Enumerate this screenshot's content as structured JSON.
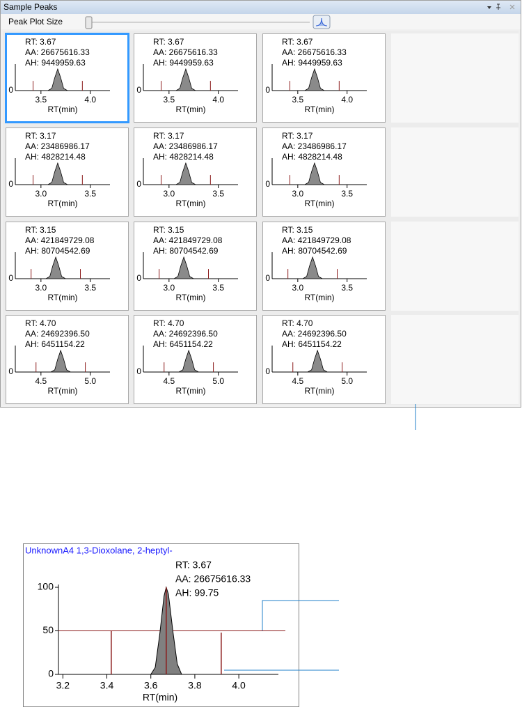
{
  "panel": {
    "title": "Sample Peaks",
    "toolbar_label": "Peak Plot Size",
    "rows": [
      {
        "xlim": [
          3.24,
          4.2
        ],
        "xticks": [
          3.5,
          {
            "value": 4.0,
            "label": "4.0"
          }
        ],
        "ylim": [
          0,
          110
        ],
        "yticks": [
          0
        ],
        "x_label": "RT(min)",
        "peak_x": [
          3.57,
          3.61,
          3.64,
          3.67,
          3.7,
          3.73,
          3.77
        ],
        "peak_values": [
          0,
          10,
          60,
          100,
          60,
          10,
          0
        ],
        "marker_x": [
          3.42,
          3.67,
          3.92
        ],
        "marker_values": [
          45,
          100,
          45
        ],
        "cells": [
          {
            "rt": "RT: 3.67",
            "aa": "AA: 26675616.33",
            "ah": "AH: 9449959.63"
          },
          {
            "rt": "RT: 3.67",
            "aa": "AA: 26675616.33",
            "ah": "AH: 9449959.63"
          },
          {
            "rt": "RT: 3.67",
            "aa": "AA: 26675616.33",
            "ah": "AH: 9449959.63"
          }
        ]
      },
      {
        "xlim": [
          2.74,
          3.7
        ],
        "xticks": [
          {
            "value": 3.0,
            "label": "3.0"
          },
          3.5
        ],
        "ylim": [
          0,
          110
        ],
        "yticks": [
          0
        ],
        "x_label": "RT(min)",
        "peak_x": [
          3.07,
          3.11,
          3.14,
          3.17,
          3.2,
          3.23,
          3.27
        ],
        "peak_values": [
          0,
          10,
          60,
          100,
          60,
          10,
          0
        ],
        "marker_x": [
          2.92,
          3.17,
          3.42
        ],
        "marker_values": [
          45,
          100,
          45
        ],
        "cells": [
          {
            "rt": "RT: 3.17",
            "aa": "AA: 23486986.17",
            "ah": "AH: 4828214.48"
          },
          {
            "rt": "RT: 3.17",
            "aa": "AA: 23486986.17",
            "ah": "AH: 4828214.48"
          },
          {
            "rt": "RT: 3.17",
            "aa": "AA: 23486986.17",
            "ah": "AH: 4828214.48"
          }
        ]
      },
      {
        "xlim": [
          2.74,
          3.7
        ],
        "xticks": [
          {
            "value": 3.0,
            "label": "3.0"
          },
          3.5
        ],
        "ylim": [
          0,
          110
        ],
        "yticks": [
          0
        ],
        "x_label": "RT(min)",
        "peak_x": [
          3.05,
          3.09,
          3.12,
          3.15,
          3.18,
          3.21,
          3.25
        ],
        "peak_values": [
          0,
          10,
          60,
          100,
          60,
          10,
          0
        ],
        "marker_x": [
          2.9,
          3.15,
          3.4
        ],
        "marker_values": [
          45,
          100,
          45
        ],
        "cells": [
          {
            "rt": "RT: 3.15",
            "aa": "AA: 421849729.08",
            "ah": "AH: 80704542.69"
          },
          {
            "rt": "RT: 3.15",
            "aa": "AA: 421849729.08",
            "ah": "AH: 80704542.69"
          },
          {
            "rt": "RT: 3.15",
            "aa": "AA: 421849729.08",
            "ah": "AH: 80704542.69"
          }
        ]
      },
      {
        "xlim": [
          4.24,
          5.2
        ],
        "xticks": [
          4.5,
          {
            "value": 5.0,
            "label": "5.0"
          }
        ],
        "ylim": [
          0,
          110
        ],
        "yticks": [
          0
        ],
        "x_label": "RT(min)",
        "peak_x": [
          4.6,
          4.64,
          4.67,
          4.7,
          4.73,
          4.76,
          4.8
        ],
        "peak_values": [
          0,
          10,
          60,
          100,
          60,
          10,
          0
        ],
        "marker_x": [
          4.45,
          4.7,
          4.95
        ],
        "marker_values": [
          45,
          100,
          45
        ],
        "cells": [
          {
            "rt": "RT: 4.70",
            "aa": "AA: 24692396.50",
            "ah": "AH: 6451154.22"
          },
          {
            "rt": "RT: 4.70",
            "aa": "AA: 24692396.50",
            "ah": "AH: 6451154.22"
          },
          {
            "rt": "RT: 4.70",
            "aa": "AA: 24692396.50",
            "ah": "AH: 6451154.22"
          }
        ]
      }
    ]
  },
  "chart_data": {
    "type": "line",
    "title": "UnknownA4   1,3-Dioxolane, 2-heptyl-",
    "annotations": [
      "RT: 3.67",
      "AA: 26675616.33",
      "AH: 99.75"
    ],
    "x_label": "RT(min)",
    "xlim": [
      3.18,
      4.18
    ],
    "xticks": [
      3.2,
      3.4,
      3.6,
      3.8,
      {
        "value": 4.0,
        "label": "4.0"
      }
    ],
    "ylim": [
      0,
      100
    ],
    "yticks": [
      0,
      50,
      100
    ],
    "x": [
      3.6,
      3.62,
      3.64,
      3.66,
      3.67,
      3.68,
      3.7,
      3.72,
      3.74
    ],
    "values": [
      0,
      8,
      45,
      90,
      100,
      92,
      50,
      12,
      0
    ],
    "color": "#808080",
    "threshold": 50,
    "marker_x": [
      3.42,
      3.67,
      3.92
    ],
    "marker_values": [
      50,
      100,
      48
    ]
  }
}
